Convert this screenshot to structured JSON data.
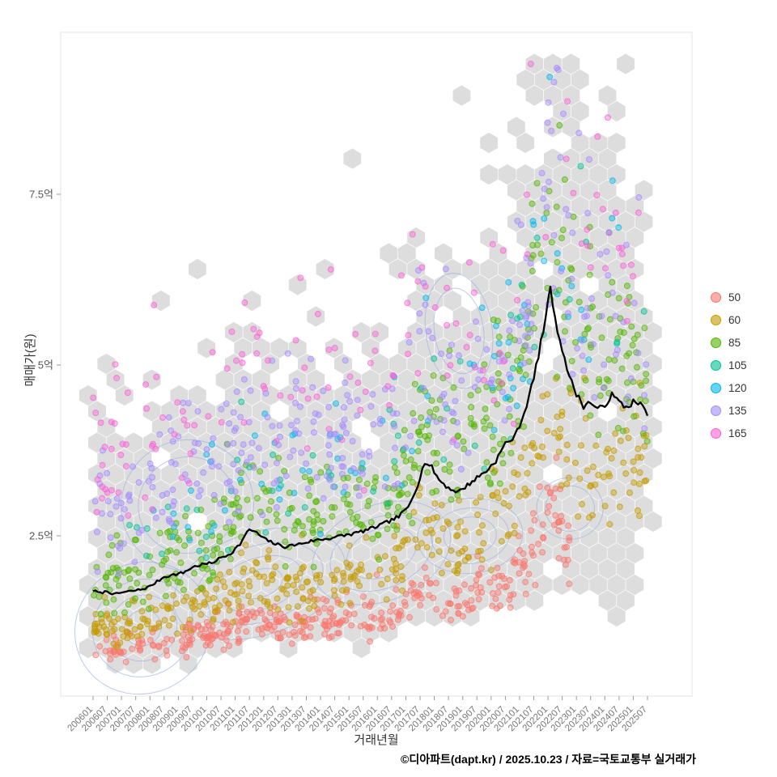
{
  "footer": "©디아파트(dapt.kr) / 2025.10.23 / 자료=국토교통부 실거래가",
  "legend": {
    "items": [
      {
        "label": "50",
        "color": "#F8766D"
      },
      {
        "label": "60",
        "color": "#C49A00"
      },
      {
        "label": "85",
        "color": "#53B400"
      },
      {
        "label": "105",
        "color": "#00C094"
      },
      {
        "label": "120",
        "color": "#00B6EB"
      },
      {
        "label": "135",
        "color": "#A58AFF"
      },
      {
        "label": "165",
        "color": "#FB61D7"
      }
    ]
  },
  "chart_data": {
    "type": "scatter",
    "title": "",
    "xlabel": "거래년월",
    "ylabel": "매매가(원)",
    "x_range": [
      "200601",
      "202507"
    ],
    "y_unit": "억원",
    "y_ticks": [
      {
        "v": 2.5,
        "label": "2.5억"
      },
      {
        "v": 5,
        "label": "5억"
      },
      {
        "v": 7.5,
        "label": "7.5억"
      }
    ],
    "x_tick_labels": [
      "200601",
      "200607",
      "200701",
      "200707",
      "200801",
      "200807",
      "200901",
      "200907",
      "201001",
      "201007",
      "201101",
      "201107",
      "201201",
      "201207",
      "201301",
      "201307",
      "201401",
      "201407",
      "201501",
      "201507",
      "201601",
      "201607",
      "201701",
      "201707",
      "201801",
      "201807",
      "201901",
      "201907",
      "202001",
      "202007",
      "202101",
      "202107",
      "202201",
      "202207",
      "202301",
      "202307",
      "202401",
      "202407",
      "202501",
      "202507"
    ],
    "overlays": {
      "hexbin_fill": "#c6c6c6",
      "contour_color": "#a3b3e3",
      "median_line_color": "#000000"
    },
    "median_line_eok": [
      [
        "200601",
        1.7
      ],
      [
        "200604",
        1.66
      ],
      [
        "200607",
        1.69
      ],
      [
        "200610",
        1.64
      ],
      [
        "200701",
        1.67
      ],
      [
        "200707",
        1.7
      ],
      [
        "200710",
        1.72
      ],
      [
        "200801",
        1.76
      ],
      [
        "200807",
        1.9
      ],
      [
        "200811",
        1.93
      ],
      [
        "200903",
        1.96
      ],
      [
        "200907",
        2.04
      ],
      [
        "200911",
        2.08
      ],
      [
        "201003",
        2.1
      ],
      [
        "201007",
        2.18
      ],
      [
        "201011",
        2.24
      ],
      [
        "201103",
        2.38
      ],
      [
        "201107",
        2.6
      ],
      [
        "201110",
        2.54
      ],
      [
        "201202",
        2.44
      ],
      [
        "201206",
        2.38
      ],
      [
        "201210",
        2.34
      ],
      [
        "201304",
        2.38
      ],
      [
        "201310",
        2.43
      ],
      [
        "201404",
        2.46
      ],
      [
        "201410",
        2.5
      ],
      [
        "201504",
        2.54
      ],
      [
        "201510",
        2.6
      ],
      [
        "201604",
        2.68
      ],
      [
        "201610",
        2.78
      ],
      [
        "201702",
        2.92
      ],
      [
        "201706",
        3.25
      ],
      [
        "201709",
        3.58
      ],
      [
        "201712",
        3.5
      ],
      [
        "201803",
        3.32
      ],
      [
        "201807",
        3.2
      ],
      [
        "201811",
        3.14
      ],
      [
        "201903",
        3.24
      ],
      [
        "201907",
        3.35
      ],
      [
        "201911",
        3.45
      ],
      [
        "202003",
        3.6
      ],
      [
        "202007",
        3.85
      ],
      [
        "202011",
        3.95
      ],
      [
        "202103",
        4.3
      ],
      [
        "202107",
        4.8
      ],
      [
        "202111",
        5.5
      ],
      [
        "202201",
        5.9
      ],
      [
        "202202",
        6.18
      ],
      [
        "202204",
        5.65
      ],
      [
        "202207",
        5.25
      ],
      [
        "202210",
        4.82
      ],
      [
        "202301",
        4.58
      ],
      [
        "202304",
        4.4
      ],
      [
        "202307",
        4.46
      ],
      [
        "202310",
        4.34
      ],
      [
        "202401",
        4.42
      ],
      [
        "202404",
        4.56
      ],
      [
        "202407",
        4.46
      ],
      [
        "202410",
        4.38
      ],
      [
        "202501",
        4.46
      ],
      [
        "202504",
        4.42
      ],
      [
        "202507",
        4.3
      ]
    ],
    "series": [
      {
        "name": "50",
        "color": "#F8766D",
        "count": 380,
        "mult_early": 0.52,
        "mult_late": 0.47,
        "spread": 0.13,
        "t_min": 0.0,
        "t_max": 0.86,
        "t_pow": 1.0,
        "seed": 11
      },
      {
        "name": "60",
        "color": "#C49A00",
        "count": 390,
        "mult_early": 0.7,
        "mult_late": 0.8,
        "spread": 0.13,
        "t_min": 0.0,
        "t_max": 1.0,
        "t_pow": 1.0,
        "seed": 22
      },
      {
        "name": "85",
        "color": "#53B400",
        "count": 430,
        "mult_early": 1.12,
        "mult_late": 1.2,
        "spread": 0.14,
        "t_min": 0.0,
        "t_max": 1.0,
        "t_pow": 1.0,
        "seed": 33
      },
      {
        "name": "105",
        "color": "#00C094",
        "count": 60,
        "mult_early": 1.32,
        "mult_late": 1.25,
        "spread": 0.15,
        "t_min": 0.04,
        "t_max": 1.0,
        "t_pow": 0.85,
        "seed": 44
      },
      {
        "name": "120",
        "color": "#00B6EB",
        "count": 80,
        "mult_early": 1.5,
        "mult_late": 1.32,
        "spread": 0.13,
        "t_min": 0.08,
        "t_max": 0.95,
        "t_pow": 0.9,
        "seed": 55
      },
      {
        "name": "135",
        "color": "#A58AFF",
        "count": 310,
        "mult_early": 1.78,
        "mult_late": 1.25,
        "spread": 0.14,
        "t_min": 0.0,
        "t_max": 1.0,
        "t_pow": 1.0,
        "seed": 66
      },
      {
        "name": "165",
        "color": "#FB61D7",
        "count": 150,
        "mult_early": 2.15,
        "mult_late": 1.45,
        "spread": 0.16,
        "t_min": 0.0,
        "t_max": 1.0,
        "t_pow": 1.45,
        "seed": 77
      }
    ],
    "hex_only": [
      {
        "count": 150,
        "mult_early": 1.35,
        "mult_late": 1.52,
        "spread": 0.22,
        "t_min": 0.72,
        "t_max": 0.985,
        "t_pow": 1.0,
        "seed": 91
      },
      {
        "count": 70,
        "mult_early": 0.6,
        "mult_late": 0.55,
        "spread": 0.28,
        "t_min": 0.84,
        "t_max": 1.0,
        "t_pow": 1.0,
        "seed": 92
      },
      {
        "count": 260,
        "mult_early": 1.0,
        "mult_late": 1.0,
        "spread": 0.4,
        "t_min": 0.0,
        "t_max": 1.0,
        "t_pow": 1.0,
        "seed": 93
      }
    ],
    "contour_groups": [
      {
        "t": 0.09,
        "v": 1.15,
        "rt": 0.125,
        "rv": 0.95,
        "angle": -32,
        "rings": 4
      },
      {
        "t": 0.3,
        "v": 1.8,
        "rt": 0.16,
        "rv": 0.75,
        "angle": -18,
        "rings": 4
      },
      {
        "t": 0.52,
        "v": 2.25,
        "rt": 0.13,
        "rv": 0.7,
        "angle": -22,
        "rings": 3
      },
      {
        "t": 0.17,
        "v": 2.95,
        "rt": 0.12,
        "rv": 0.95,
        "angle": -28,
        "rings": 2
      },
      {
        "t": 0.68,
        "v": 2.5,
        "rt": 0.095,
        "rv": 0.55,
        "angle": -5,
        "rings": 3
      },
      {
        "t": 0.66,
        "v": 5.5,
        "rt": 0.06,
        "rv": 0.85,
        "angle": -8,
        "rings": 2
      },
      {
        "t": 0.86,
        "v": 2.9,
        "rt": 0.06,
        "rv": 0.45,
        "angle": 0,
        "rings": 2
      }
    ]
  }
}
